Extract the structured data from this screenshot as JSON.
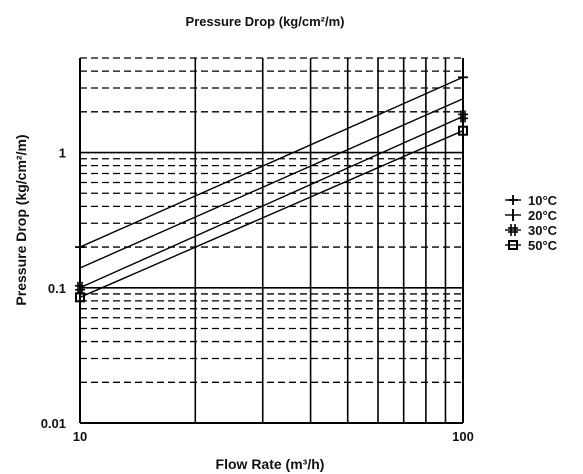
{
  "chart_data": {
    "type": "line",
    "title": "Pressure Drop (kg/cm²/m)",
    "xlabel": "Flow Rate (m³/h)",
    "ylabel": "Pressure Drop (kg/cm²/m)",
    "x_scale": "log",
    "y_scale": "log",
    "xlim": [
      10,
      100
    ],
    "ylim": [
      0.01,
      5
    ],
    "x_ticks": [
      {
        "value": 10,
        "label": "10"
      },
      {
        "value": 100,
        "label": "100"
      }
    ],
    "y_ticks": [
      {
        "value": 0.01,
        "label": "0.01"
      },
      {
        "value": 0.1,
        "label": "0.1"
      },
      {
        "value": 1,
        "label": "1"
      }
    ],
    "grid": true,
    "legend_position": "right",
    "series": [
      {
        "name": "10°C",
        "marker": "plus",
        "x": [
          10,
          100
        ],
        "y": [
          0.2,
          3.6
        ]
      },
      {
        "name": "20°C",
        "marker": "bar",
        "x": [
          10,
          100
        ],
        "y": [
          0.14,
          2.5
        ]
      },
      {
        "name": "30°C",
        "marker": "double-plus",
        "x": [
          10,
          100
        ],
        "y": [
          0.1,
          1.85
        ]
      },
      {
        "name": "50°C",
        "marker": "square",
        "x": [
          10,
          100
        ],
        "y": [
          0.085,
          1.45
        ]
      }
    ]
  }
}
